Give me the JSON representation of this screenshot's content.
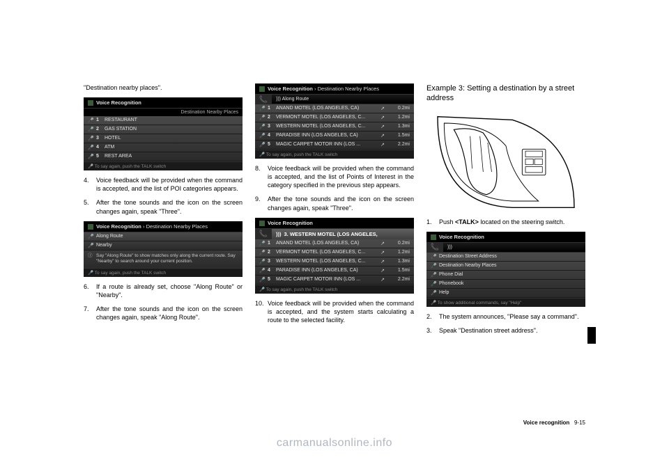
{
  "col1": {
    "intro": "\"Destination nearby places\".",
    "shot1": {
      "title": "Voice Recognition",
      "header": "Destination Nearby Places",
      "items": [
        {
          "n": "1",
          "label": "RESTAURANT"
        },
        {
          "n": "2",
          "label": "GAS STATION"
        },
        {
          "n": "3",
          "label": "HOTEL"
        },
        {
          "n": "4",
          "label": "ATM"
        },
        {
          "n": "5",
          "label": "REST AREA"
        }
      ],
      "footer": "To say again, push the TALK switch"
    },
    "step4": "Voice feedback will be provided when the command is accepted, and the list of POI categories appears.",
    "step5": "After the tone sounds and the icon on the screen changes again, speak \"Three\".",
    "shot2": {
      "title": "Voice Recognition",
      "breadcrumb": "Destination Nearby Places",
      "items": [
        {
          "label": "Along Route"
        },
        {
          "label": "Nearby"
        }
      ],
      "info": "Say \"Along Route\" to show matches only along the current route. Say \"Nearby\" to search around your current position.",
      "footer": "To say again, push the TALK switch"
    },
    "step6": "If a route is already set, choose \"Along Route\" or \"Nearby\".",
    "step7": "After the tone sounds and the icon on the screen changes again, speak \"Along Route\"."
  },
  "col2": {
    "shot3": {
      "title": "Voice Recognition",
      "breadcrumb": "Destination Nearby Places",
      "voice": "Along Route",
      "items": [
        {
          "n": "1",
          "label": "ANAND MOTEL (LOS ANGELES, CA)",
          "dist": "0.2mi"
        },
        {
          "n": "2",
          "label": "VERMONT MOTEL (LOS ANGELES, C...",
          "dist": "1.2mi"
        },
        {
          "n": "3",
          "label": "WESTERN MOTEL (LOS ANGELES, C...",
          "dist": "1.3mi"
        },
        {
          "n": "4",
          "label": "PARADISE INN (LOS ANGELES, CA)",
          "dist": "1.5mi"
        },
        {
          "n": "5",
          "label": "MAGIC CARPET MOTOR INN (LOS ...",
          "dist": "2.2mi"
        }
      ],
      "footer": "To say again, push the TALK switch"
    },
    "step8": "Voice feedback will be provided when the command is accepted, and the list of Points of Interest in the category specified in the previous step appears.",
    "step9": "After the tone sounds and the icon on the screen changes again, speak \"Three\".",
    "shot4": {
      "title": "Voice Recognition",
      "selected": "3. WESTERN MOTEL (LOS ANGELES,",
      "items": [
        {
          "n": "1",
          "label": "ANAND MOTEL (LOS ANGELES, CA)",
          "dist": "0.2mi"
        },
        {
          "n": "2",
          "label": "VERMONT MOTEL (LOS ANGELES, C...",
          "dist": "1.2mi"
        },
        {
          "n": "3",
          "label": "WESTERN MOTEL (LOS ANGELES, C...",
          "dist": "1.3mi"
        },
        {
          "n": "4",
          "label": "PARADISE INN (LOS ANGELES, CA)",
          "dist": "1.5mi"
        },
        {
          "n": "5",
          "label": "MAGIC CARPET MOTOR INN (LOS ...",
          "dist": "2.2mi"
        }
      ],
      "footer": "To say again, push the TALK switch"
    },
    "step10": "Voice feedback will be provided when the command is accepted, and the system starts calculating a route to the selected facility."
  },
  "col3": {
    "heading": "Example 3: Setting a destination by a street address",
    "step1_pre": "Push ",
    "step1_bold": "<TALK>",
    "step1_post": " located on the steering switch.",
    "shot5": {
      "title": "Voice Recognition",
      "items": [
        {
          "label": "Destination Street Address"
        },
        {
          "label": "Destination Nearby Places"
        },
        {
          "label": "Phone Dial <Phone Number>"
        },
        {
          "label": "Phonebook <Voicetag>"
        },
        {
          "label": "Help"
        }
      ],
      "footer": "To show additional commands, say \"Help\""
    },
    "step2": "The system announces, \"Please say a command\".",
    "step3": "Speak \"Destination street address\"."
  },
  "footer": {
    "section": "Voice recognition",
    "page": "9-15"
  },
  "watermark": "carmanualsonline.info"
}
